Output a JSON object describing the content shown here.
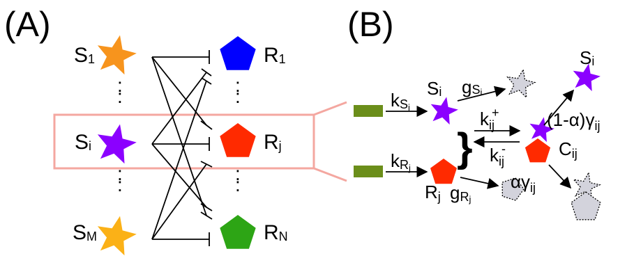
{
  "panels": {
    "a": "(A)",
    "b": "(B)"
  },
  "panel_a": {
    "s1": {
      "main": "S",
      "sub": "1"
    },
    "si": {
      "main": "S",
      "sub": "i"
    },
    "sm": {
      "main": "S",
      "sub": "M"
    },
    "r1": {
      "main": "R",
      "sub": "1"
    },
    "rj": {
      "main": "R",
      "sub": "j"
    },
    "rn": {
      "main": "R",
      "sub": "N"
    },
    "dots": ":"
  },
  "panel_b": {
    "k_s": {
      "main": "k",
      "sub": "S",
      "subsub": "i"
    },
    "k_r": {
      "main": "k",
      "sub": "R",
      "subsub": "j"
    },
    "s_i": {
      "main": "S",
      "sub": "i"
    },
    "r_j": {
      "main": "R",
      "sub": "j"
    },
    "g_s": {
      "main": "g",
      "sub": "S",
      "subsub": "i"
    },
    "g_r": {
      "main": "g",
      "sub": "R",
      "subsub": "j"
    },
    "k_plus": {
      "main": "k",
      "sub": "ij",
      "sup": "+"
    },
    "k_minus": {
      "main": "k",
      "sub": "ij",
      "sup": "-"
    },
    "brace": "}",
    "c_ij": {
      "main": "C",
      "sub": "ij"
    },
    "s_i_top": {
      "main": "S",
      "sub": "i"
    },
    "release": {
      "main": "(1-α)γ",
      "sub": "ij"
    },
    "degrade": {
      "main": "αγ",
      "sub": "ij"
    }
  },
  "colors": {
    "orange": "#F7941D",
    "purple": "#8B00FF",
    "gold": "#FBB117",
    "blue": "#0000FF",
    "red": "#FF2A00",
    "green": "#2DA515",
    "olive": "#6B8E1A",
    "grey": "#D3D3DC",
    "highlight_box": "#F4A7A0"
  }
}
